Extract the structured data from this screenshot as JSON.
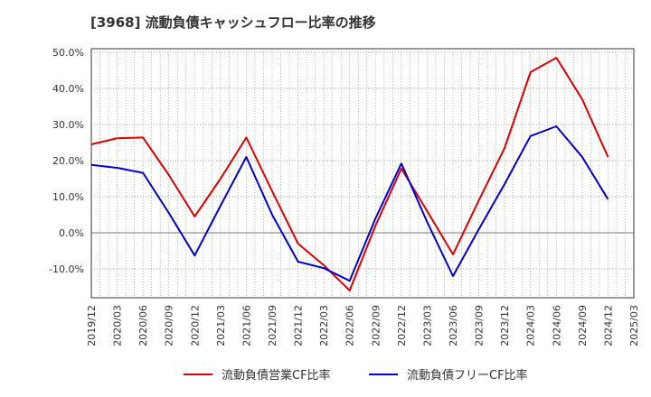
{
  "chart_data": {
    "type": "line",
    "title": "[3968]  流動負債キャッシュフロー比率の推移",
    "xlabel": "",
    "ylabel": "",
    "x": [
      "2019/12",
      "2020/03",
      "2020/06",
      "2020/09",
      "2020/12",
      "2021/03",
      "2021/06",
      "2021/09",
      "2021/12",
      "2022/03",
      "2022/06",
      "2022/09",
      "2022/12",
      "2023/03",
      "2023/06",
      "2023/09",
      "2023/12",
      "2024/03",
      "2024/06",
      "2024/09",
      "2024/12",
      "2025/03"
    ],
    "ylim": [
      -18,
      51
    ],
    "yticks": [
      -10,
      0,
      10,
      20,
      30,
      40,
      50
    ],
    "ytick_labels": [
      "-10.0%",
      "0.0%",
      "10.0%",
      "20.0%",
      "30.0%",
      "40.0%",
      "50.0%"
    ],
    "grid": true,
    "legend_position": "bottom",
    "series": [
      {
        "name": "流動負債営業CF比率",
        "color": "#dd0000",
        "values": [
          24.5,
          26.2,
          26.4,
          16.0,
          4.5,
          15.0,
          26.4,
          11.5,
          -3.0,
          -9.0,
          -16.0,
          2.0,
          17.8,
          6.0,
          -6.0,
          9.0,
          23.5,
          44.5,
          48.5,
          37.0,
          21.0,
          null
        ]
      },
      {
        "name": "流動負債フリーCF比率",
        "color": "#0000cc",
        "values": [
          18.8,
          18.0,
          16.6,
          5.5,
          -6.3,
          7.5,
          21.0,
          5.0,
          -8.0,
          -9.8,
          -13.3,
          4.0,
          19.2,
          3.0,
          -12.0,
          1.0,
          13.5,
          26.8,
          29.5,
          21.0,
          9.3,
          null
        ]
      }
    ]
  }
}
